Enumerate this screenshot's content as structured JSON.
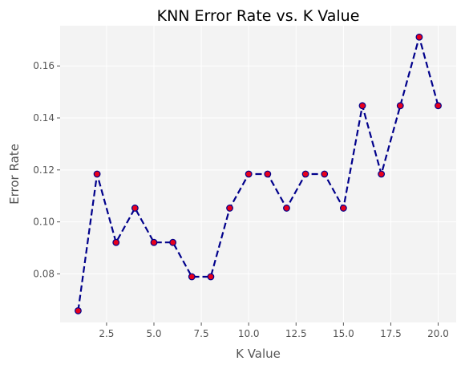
{
  "chart_data": {
    "type": "line",
    "title": "KNN Error Rate vs. K Value",
    "xlabel": "K Value",
    "ylabel": "Error Rate",
    "xlim": [
      0.05,
      20.95
    ],
    "ylim": [
      0.0613,
      0.1755
    ],
    "xticks": [
      2.5,
      5.0,
      7.5,
      10.0,
      12.5,
      15.0,
      17.5,
      20.0
    ],
    "xtick_labels": [
      "2.5",
      "5.0",
      "7.5",
      "10.0",
      "12.5",
      "15.0",
      "17.5",
      "20.0"
    ],
    "yticks": [
      0.08,
      0.1,
      0.12,
      0.14,
      0.16
    ],
    "ytick_labels": [
      "0.08",
      "0.10",
      "0.12",
      "0.14",
      "0.16"
    ],
    "grid": true,
    "legend": "none",
    "series": [
      {
        "x": [
          1,
          2,
          3,
          4,
          5,
          6,
          7,
          8,
          9,
          10,
          11,
          12,
          13,
          14,
          15,
          16,
          17,
          18,
          19,
          20
        ],
        "y": [
          0.0658,
          0.1184,
          0.0921,
          0.1053,
          0.0921,
          0.0921,
          0.0789,
          0.0789,
          0.1053,
          0.1184,
          0.1184,
          0.1053,
          0.1184,
          0.1184,
          0.1053,
          0.1447,
          0.1184,
          0.1447,
          0.1711,
          0.1447
        ]
      }
    ],
    "colors": {
      "line": "#00008b",
      "marker_fill": "#e8001c",
      "marker_edge": "#00008b",
      "plot_background": "#f3f3f3",
      "grid": "#ffffff",
      "tick_text": "#555555",
      "label_text": "#555555",
      "title_text": "#000000"
    }
  }
}
